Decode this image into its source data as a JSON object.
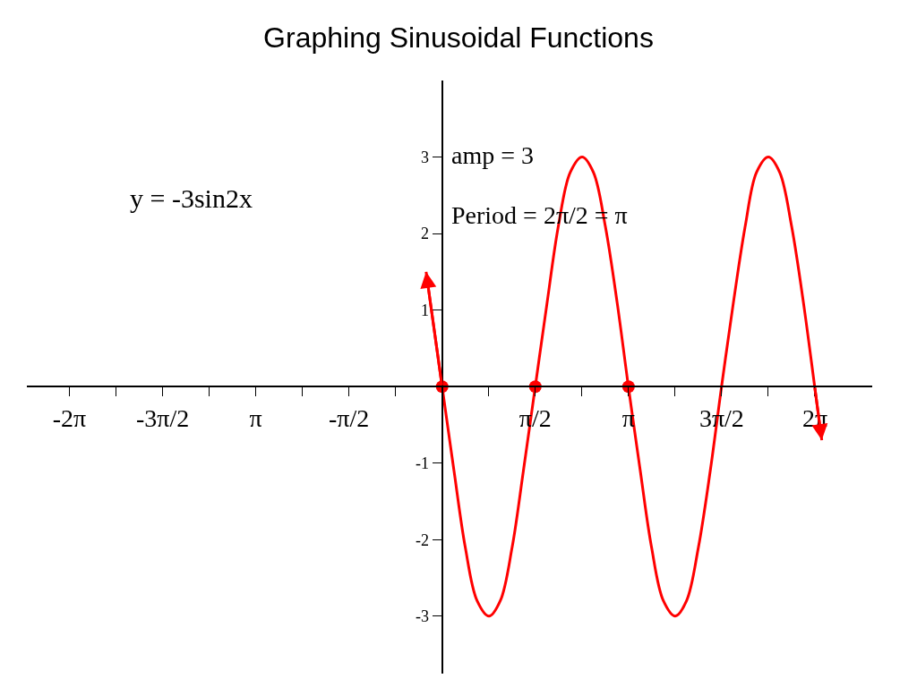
{
  "chart_data": {
    "type": "line",
    "title": "Graphing Sinusoidal Functions",
    "annotations": [
      "y = -3sin2x",
      "amp = 3",
      "Period = 2π/2 = π"
    ],
    "series": [
      {
        "color": "#ff0000",
        "marker": "none",
        "x": [
          -0.27,
          0,
          0.2,
          0.39,
          0.59,
          0.79,
          0.98,
          1.18,
          1.37,
          1.57,
          1.77,
          1.96,
          2.16,
          2.36,
          2.55,
          2.75,
          2.95,
          3.14,
          3.34,
          3.53,
          3.73,
          3.93,
          4.12,
          4.32,
          4.52,
          4.71,
          4.91,
          5.11,
          5.3,
          5.5,
          5.69,
          5.89,
          6.09,
          6.28,
          6.4
        ],
        "values": [
          1.5,
          0,
          -1.1,
          -2.1,
          -2.8,
          -3,
          -2.8,
          -2.1,
          -1.1,
          0,
          1.1,
          2.1,
          2.8,
          3,
          2.8,
          2.1,
          1.1,
          0,
          -1.1,
          -2.1,
          -2.8,
          -3,
          -2.8,
          -2.1,
          -1.1,
          0,
          1.1,
          2.1,
          2.8,
          3,
          2.8,
          2.1,
          1.1,
          0,
          -0.7
        ]
      },
      {
        "type": "scatter",
        "color": "#ff0000",
        "marker": "circle",
        "x": [
          0,
          1.571,
          3.142
        ],
        "values": [
          0,
          0,
          0
        ]
      }
    ],
    "xlim": [
      -7.0,
      7.25
    ],
    "ylim": [
      -3.75,
      4.0
    ],
    "xticks": [
      {
        "value": -6.283,
        "label": "-2π"
      },
      {
        "value": -5.498,
        "label": null
      },
      {
        "value": -4.712,
        "label": "-3π/2"
      },
      {
        "value": -3.927,
        "label": null
      },
      {
        "value": -3.142,
        "label": "π"
      },
      {
        "value": -2.356,
        "label": null
      },
      {
        "value": -1.571,
        "label": "-π/2"
      },
      {
        "value": -0.785,
        "label": null
      },
      {
        "value": 0.785,
        "label": null
      },
      {
        "value": 1.571,
        "label": "π/2"
      },
      {
        "value": 2.356,
        "label": null
      },
      {
        "value": 3.142,
        "label": "π"
      },
      {
        "value": 3.927,
        "label": null
      },
      {
        "value": 4.712,
        "label": "3π/2"
      },
      {
        "value": 5.498,
        "label": null
      },
      {
        "value": 6.283,
        "label": "2π"
      }
    ],
    "yticks": [
      -3,
      -2,
      -1,
      1,
      2,
      3
    ]
  }
}
